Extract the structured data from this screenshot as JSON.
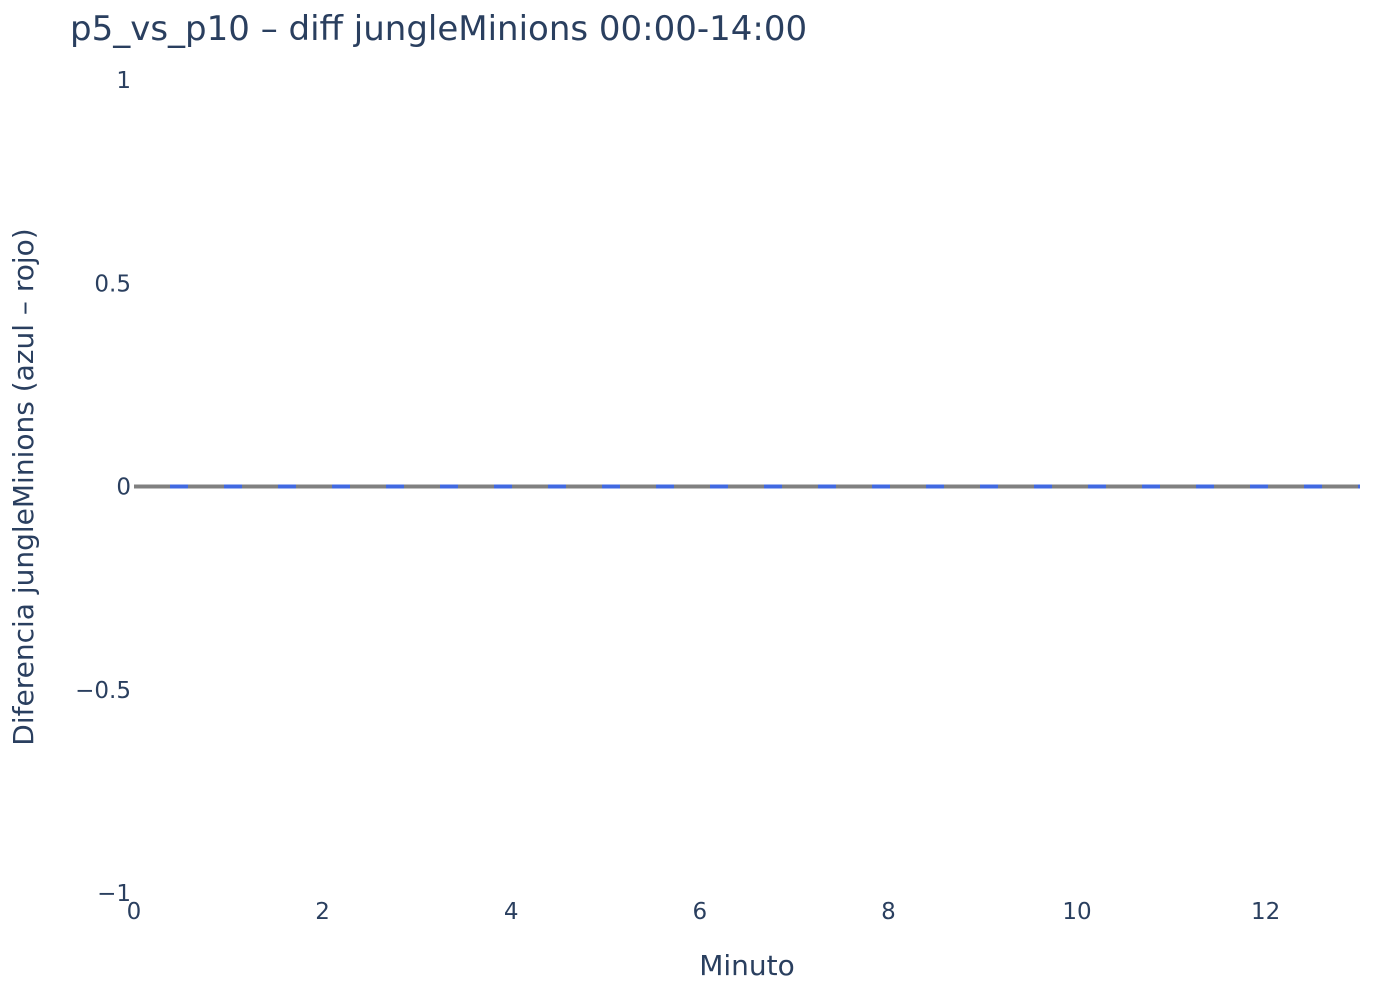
{
  "chart_data": {
    "type": "line",
    "title": "p5_vs_p10 – diff jungleMinions 00:00-14:00",
    "xlabel": "Minuto",
    "ylabel": "Diferencia jungleMinions (azul – rojo)",
    "xlim": [
      0,
      13
    ],
    "ylim": [
      -1,
      1
    ],
    "x_ticks": [
      0,
      2,
      4,
      6,
      8,
      10,
      12
    ],
    "x_tick_labels": [
      "0",
      "2",
      "4",
      "6",
      "8",
      "10",
      "12"
    ],
    "y_ticks": [
      1,
      0.5,
      0,
      -0.5,
      -1
    ],
    "y_tick_labels": [
      "1",
      "0.5",
      "0",
      "−0.5",
      "−1"
    ],
    "grid": false,
    "legend": "none",
    "series": [
      {
        "x": [
          0,
          1,
          2,
          3,
          4,
          5,
          6,
          7,
          8,
          9,
          10,
          11,
          12,
          13
        ],
        "values": [
          0,
          0,
          0,
          0,
          0,
          0,
          0,
          0,
          0,
          0,
          0,
          0,
          0,
          0
        ],
        "color": "#4169e1"
      }
    ],
    "zero_line": {
      "y": 0,
      "color": "#808080",
      "dash": "dashed"
    }
  }
}
